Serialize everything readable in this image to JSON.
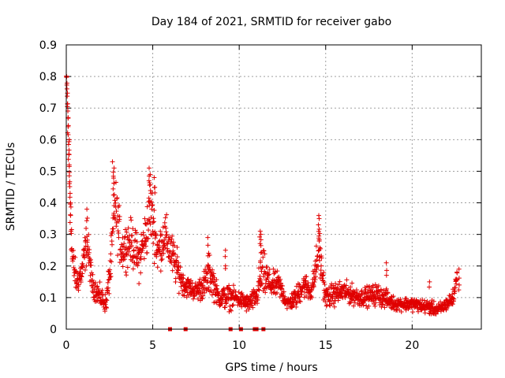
{
  "chart_data": {
    "type": "scatter",
    "title": "Day 184 of 2021, SRMTID for receiver gabo",
    "xlabel": "GPS time / hours",
    "ylabel": "SRMTID / TECUs",
    "xlim": [
      0,
      24
    ],
    "ylim": [
      0,
      0.9
    ],
    "xticks": [
      0,
      5,
      10,
      15,
      20
    ],
    "yticks": [
      0,
      0.1,
      0.2,
      0.3,
      0.4,
      0.5,
      0.6,
      0.7,
      0.8,
      0.9
    ],
    "grid": true,
    "colors": {
      "marker": "#e00000",
      "grid": "#a0a0a0",
      "axis": "#000000"
    },
    "marker": "plus",
    "series": [
      {
        "name": "SRMTID",
        "trend": [
          [
            0.0,
            0.8,
            0.02
          ],
          [
            0.1,
            0.68,
            0.05
          ],
          [
            0.2,
            0.45,
            0.15
          ],
          [
            0.35,
            0.22,
            0.1
          ],
          [
            0.6,
            0.15,
            0.06
          ],
          [
            0.9,
            0.18,
            0.07
          ],
          [
            1.2,
            0.28,
            0.1
          ],
          [
            1.5,
            0.14,
            0.05
          ],
          [
            2.0,
            0.1,
            0.05
          ],
          [
            2.3,
            0.08,
            0.04
          ],
          [
            2.6,
            0.22,
            0.1
          ],
          [
            2.8,
            0.4,
            0.15
          ],
          [
            3.2,
            0.25,
            0.1
          ],
          [
            3.7,
            0.28,
            0.1
          ],
          [
            4.2,
            0.22,
            0.1
          ],
          [
            4.6,
            0.3,
            0.12
          ],
          [
            4.9,
            0.38,
            0.14
          ],
          [
            5.3,
            0.24,
            0.1
          ],
          [
            5.7,
            0.3,
            0.1
          ],
          [
            6.2,
            0.22,
            0.1
          ],
          [
            6.8,
            0.14,
            0.05
          ],
          [
            7.5,
            0.12,
            0.04
          ],
          [
            8.0,
            0.14,
            0.07
          ],
          [
            8.3,
            0.18,
            0.1
          ],
          [
            8.8,
            0.1,
            0.04
          ],
          [
            9.3,
            0.1,
            0.06
          ],
          [
            9.8,
            0.1,
            0.04
          ],
          [
            10.5,
            0.08,
            0.04
          ],
          [
            11.0,
            0.1,
            0.05
          ],
          [
            11.3,
            0.18,
            0.12
          ],
          [
            11.8,
            0.14,
            0.06
          ],
          [
            12.3,
            0.14,
            0.06
          ],
          [
            12.8,
            0.08,
            0.03
          ],
          [
            13.3,
            0.1,
            0.05
          ],
          [
            13.7,
            0.14,
            0.06
          ],
          [
            14.2,
            0.12,
            0.05
          ],
          [
            14.6,
            0.25,
            0.1
          ],
          [
            15.0,
            0.1,
            0.05
          ],
          [
            16.0,
            0.12,
            0.05
          ],
          [
            17.0,
            0.1,
            0.04
          ],
          [
            18.0,
            0.11,
            0.05
          ],
          [
            19.0,
            0.08,
            0.03
          ],
          [
            20.0,
            0.08,
            0.03
          ],
          [
            21.0,
            0.07,
            0.03
          ],
          [
            21.5,
            0.06,
            0.03
          ],
          [
            22.0,
            0.08,
            0.03
          ],
          [
            22.4,
            0.1,
            0.04
          ],
          [
            22.6,
            0.18,
            0.02
          ]
        ],
        "spikes": [
          [
            0.05,
            0.8
          ],
          [
            0.1,
            0.67
          ],
          [
            0.15,
            0.6
          ],
          [
            0.2,
            0.52
          ],
          [
            0.25,
            0.43
          ],
          [
            1.2,
            0.38
          ],
          [
            2.7,
            0.53
          ],
          [
            2.75,
            0.51
          ],
          [
            4.8,
            0.51
          ],
          [
            4.85,
            0.49
          ],
          [
            5.1,
            0.48
          ],
          [
            8.2,
            0.29
          ],
          [
            9.2,
            0.25
          ],
          [
            11.2,
            0.31
          ],
          [
            11.25,
            0.3
          ],
          [
            14.6,
            0.36
          ],
          [
            14.65,
            0.35
          ],
          [
            18.5,
            0.21
          ],
          [
            21.0,
            0.15
          ],
          [
            22.7,
            0.19
          ]
        ],
        "near_zero": [
          6.0,
          6.9,
          9.5,
          10.1,
          10.9,
          11.0,
          11.4
        ]
      }
    ]
  }
}
